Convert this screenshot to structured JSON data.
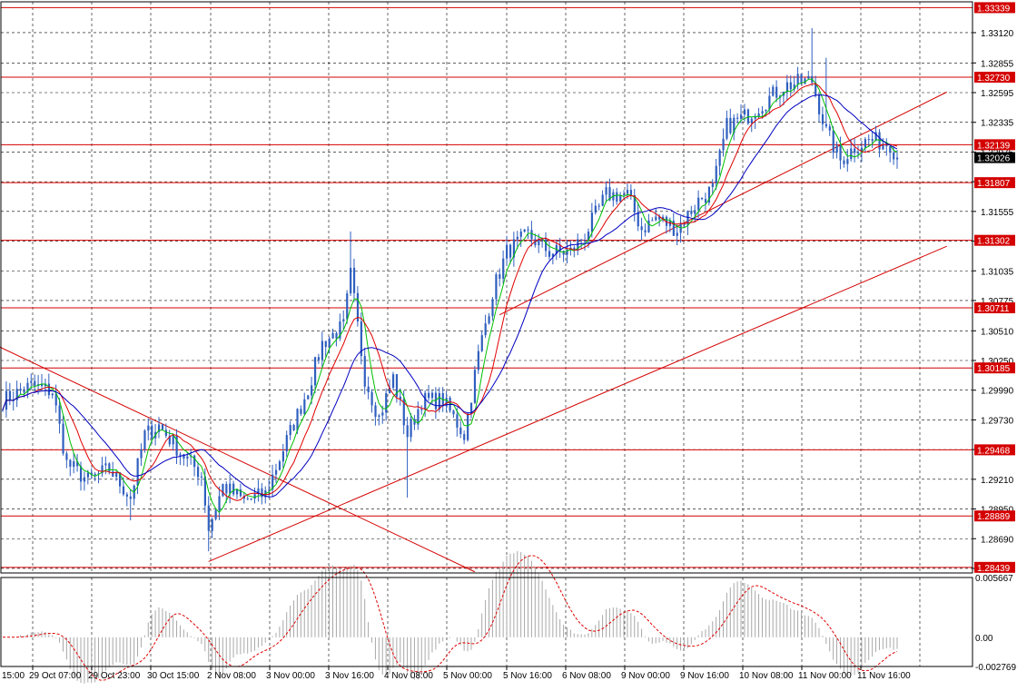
{
  "colors": {
    "background": "#ffffff",
    "grid": "#000000",
    "candle": "#2f5fbf",
    "ma_fast": "#00c000",
    "ma_mid": "#e00000",
    "ma_slow": "#0000c0",
    "levels": "#d40000",
    "trendlines": "#d40000",
    "osc_hist": "#a8a8a8",
    "osc_signal": "#e00000",
    "price_label_bg": "#d40000",
    "current_price_bg": "#000000"
  },
  "chart_data": [
    {
      "type": "candlestick",
      "title": "",
      "xlabel": "",
      "ylabel": "",
      "ylim": [
        1.2839,
        1.3339
      ],
      "grid": true,
      "y_ticks": [
        "1.33120",
        "1.32855",
        "1.32595",
        "1.32335",
        "1.32075",
        "1.31815",
        "1.31555",
        "1.31295",
        "1.31035",
        "1.30775",
        "1.30510",
        "1.30250",
        "1.29990",
        "1.29730",
        "1.29470",
        "1.29210",
        "1.28950",
        "1.28690",
        "1.28430"
      ],
      "x_ticks": [
        "29 Oct 07:00",
        "29 Oct 23:00",
        "30 Oct 15:00",
        "2 Nov 08:00",
        "3 Nov 00:00",
        "3 Nov 16:00",
        "4 Nov 08:00",
        "5 Nov 00:00",
        "5 Nov 16:00",
        "6 Nov 08:00",
        "9 Nov 00:00",
        "9 Nov 16:00",
        "10 Nov 08:00",
        "11 Nov 00:00",
        "11 Nov 16:00"
      ],
      "x_tick_partial": "15:00",
      "level_labels": [
        "1.33339",
        "1.32730",
        "1.32139",
        "1.31807",
        "1.31302",
        "1.30711",
        "1.30185",
        "1.29468",
        "1.28889",
        "1.28439"
      ],
      "levels": [
        1.33339,
        1.3273,
        1.32139,
        1.31807,
        1.31302,
        1.30711,
        1.30185,
        1.29468,
        1.28889,
        1.28439
      ],
      "current_price": 1.32026,
      "current_price_label": "1.32026",
      "anchors": [
        {
          "i": 0,
          "p": 1.299
        },
        {
          "i": 8,
          "p": 1.3003
        },
        {
          "i": 14,
          "p": 1.2998
        },
        {
          "i": 18,
          "p": 1.2935
        },
        {
          "i": 24,
          "p": 1.292
        },
        {
          "i": 30,
          "p": 1.293
        },
        {
          "i": 36,
          "p": 1.2905
        },
        {
          "i": 40,
          "p": 1.296
        },
        {
          "i": 44,
          "p": 1.2968
        },
        {
          "i": 50,
          "p": 1.2945
        },
        {
          "i": 56,
          "p": 1.2925
        },
        {
          "i": 58,
          "p": 1.2878
        },
        {
          "i": 62,
          "p": 1.2915
        },
        {
          "i": 68,
          "p": 1.2902
        },
        {
          "i": 74,
          "p": 1.2908
        },
        {
          "i": 80,
          "p": 1.2955
        },
        {
          "i": 86,
          "p": 1.3
        },
        {
          "i": 90,
          "p": 1.304
        },
        {
          "i": 96,
          "p": 1.3055
        },
        {
          "i": 98,
          "p": 1.31
        },
        {
          "i": 102,
          "p": 1.301
        },
        {
          "i": 106,
          "p": 1.2975
        },
        {
          "i": 110,
          "p": 1.301
        },
        {
          "i": 114,
          "p": 1.296
        },
        {
          "i": 118,
          "p": 1.299
        },
        {
          "i": 124,
          "p": 1.299
        },
        {
          "i": 130,
          "p": 1.296
        },
        {
          "i": 134,
          "p": 1.303
        },
        {
          "i": 138,
          "p": 1.3085
        },
        {
          "i": 142,
          "p": 1.312
        },
        {
          "i": 148,
          "p": 1.3135
        },
        {
          "i": 154,
          "p": 1.312
        },
        {
          "i": 160,
          "p": 1.312
        },
        {
          "i": 164,
          "p": 1.3135
        },
        {
          "i": 170,
          "p": 1.317
        },
        {
          "i": 176,
          "p": 1.317
        },
        {
          "i": 180,
          "p": 1.314
        },
        {
          "i": 184,
          "p": 1.315
        },
        {
          "i": 190,
          "p": 1.314
        },
        {
          "i": 196,
          "p": 1.3165
        },
        {
          "i": 200,
          "p": 1.3175
        },
        {
          "i": 204,
          "p": 1.323
        },
        {
          "i": 210,
          "p": 1.324
        },
        {
          "i": 214,
          "p": 1.325
        },
        {
          "i": 220,
          "p": 1.3265
        },
        {
          "i": 224,
          "p": 1.3268
        },
        {
          "i": 228,
          "p": 1.327
        },
        {
          "i": 232,
          "p": 1.3225
        },
        {
          "i": 236,
          "p": 1.32
        },
        {
          "i": 240,
          "p": 1.3212
        },
        {
          "i": 244,
          "p": 1.3218
        },
        {
          "i": 250,
          "p": 1.3215
        },
        {
          "i": 252,
          "p": 1.3203
        }
      ],
      "osc_labels": [
        "0.005667",
        "0.00",
        "-0.002769"
      ],
      "osc_range": [
        -0.002769,
        0.005667
      ]
    }
  ]
}
